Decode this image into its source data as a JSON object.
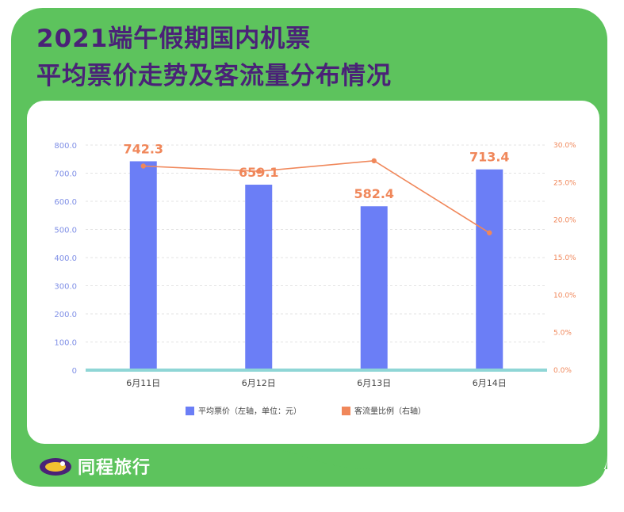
{
  "title": {
    "line1": "2021端午假期国内机票",
    "line2": "平均票价走势及客流量分布情况"
  },
  "brand": {
    "name": "同程旅行"
  },
  "colors": {
    "frame": "#5dc35d",
    "title": "#4a2277",
    "bar": "#6b7ef6",
    "line": "#f0875a",
    "baseline": "#8fd6d6"
  },
  "chart_data": {
    "type": "bar",
    "categories": [
      "6月11日",
      "6月12日",
      "6月13日",
      "6月14日"
    ],
    "series": [
      {
        "name": "平均票价（左轴，单位：元）",
        "type": "bar",
        "axis": "left",
        "values": [
          742.3,
          659.1,
          582.4,
          713.4
        ],
        "labels": [
          "742.3",
          "659.1",
          "582.4",
          "713.4"
        ]
      },
      {
        "name": "客流量比例（右轴）",
        "type": "line",
        "axis": "right",
        "values": [
          27.2,
          26.5,
          27.9,
          18.3
        ]
      }
    ],
    "y_left": {
      "range": [
        0,
        800
      ],
      "ticks": [
        "0",
        "100.0",
        "200.0",
        "300.0",
        "400.0",
        "500.0",
        "600.0",
        "700.0",
        "800.0"
      ]
    },
    "y_right": {
      "range": [
        0,
        30
      ],
      "unit": "%",
      "ticks": [
        "0.0%",
        "5.0%",
        "10.0%",
        "15.0%",
        "20.0%",
        "25.0%",
        "30.0%"
      ]
    },
    "grid": "dashed horizontal",
    "legend_position": "bottom"
  }
}
